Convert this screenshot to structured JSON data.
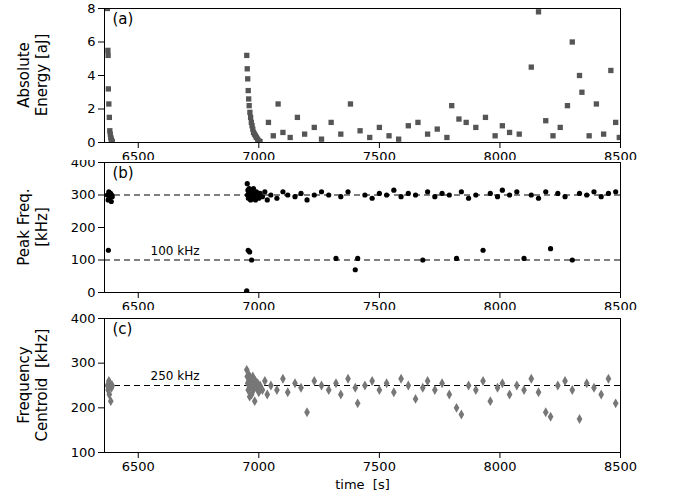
{
  "chart_data": [
    {
      "type": "scatter",
      "panel_label": "(a)",
      "y_label": [
        "Absolute",
        "Energy [aJ]"
      ],
      "color": "#555555",
      "marker": "square",
      "xlim": [
        6360,
        8500
      ],
      "xticks": [
        6500,
        7000,
        7500,
        8000,
        8500
      ],
      "ylim": [
        0,
        8
      ],
      "yticks": [
        0,
        2,
        4,
        6,
        8
      ],
      "x": [
        6372,
        6374,
        6375,
        6376,
        6378,
        6380,
        6382,
        6384,
        6386,
        6388,
        6390,
        6392,
        6950,
        6952,
        6954,
        6956,
        6958,
        6960,
        6963,
        6966,
        6969,
        6972,
        6975,
        6978,
        6982,
        6986,
        6990,
        6995,
        7000,
        7005,
        7040,
        7060,
        7080,
        7100,
        7130,
        7160,
        7190,
        7230,
        7260,
        7300,
        7340,
        7380,
        7420,
        7460,
        7500,
        7540,
        7580,
        7620,
        7660,
        7700,
        7740,
        7780,
        7800,
        7830,
        7860,
        7900,
        7940,
        7980,
        8010,
        8040,
        8080,
        8130,
        8160,
        8190,
        8220,
        8250,
        8280,
        8300,
        8330,
        8340,
        8370,
        8400,
        8430,
        8460,
        8480,
        8495
      ],
      "values": [
        8.0,
        5.5,
        5.2,
        3.2,
        2.3,
        1.5,
        0.7,
        0.5,
        0.3,
        0.2,
        0.1,
        0.05,
        5.2,
        4.4,
        3.8,
        3.1,
        2.6,
        2.2,
        1.8,
        1.5,
        1.2,
        1.0,
        0.8,
        0.6,
        0.5,
        0.4,
        0.3,
        0.2,
        0.1,
        0.05,
        1.2,
        0.4,
        2.3,
        0.6,
        0.3,
        1.5,
        0.5,
        0.9,
        0.2,
        1.2,
        0.5,
        2.3,
        0.7,
        0.3,
        0.9,
        0.4,
        0.2,
        1.0,
        1.2,
        0.5,
        0.8,
        0.3,
        2.2,
        1.4,
        1.2,
        0.9,
        1.5,
        0.4,
        1.0,
        0.6,
        0.5,
        4.5,
        7.8,
        1.3,
        0.4,
        0.9,
        2.2,
        6.0,
        4.0,
        3.0,
        0.4,
        2.3,
        0.5,
        4.3,
        1.2,
        0.3
      ]
    },
    {
      "type": "scatter",
      "panel_label": "(b)",
      "y_label": [
        "Peak Freq.",
        "[kHz]"
      ],
      "color": "#000000",
      "marker": "circle",
      "xlim": [
        6360,
        8500
      ],
      "xticks": [
        6500,
        7000,
        7500,
        8000,
        8500
      ],
      "ylim": [
        0,
        400
      ],
      "yticks": [
        0,
        100,
        200,
        300,
        400
      ],
      "reference_lines": [
        {
          "value": 300,
          "line_style": "dashed"
        },
        {
          "value": 100,
          "label": "100 kHz",
          "line_style": "dashed"
        }
      ],
      "x": [
        6372,
        6375,
        6378,
        6380,
        6382,
        6385,
        6388,
        6390,
        6376,
        6392,
        6948,
        6950,
        6952,
        6953,
        6955,
        6957,
        6958,
        6960,
        6962,
        6964,
        6966,
        6968,
        6970,
        6972,
        6975,
        6978,
        6980,
        6983,
        6986,
        6990,
        6995,
        7000,
        6956,
        6962,
        6970,
        7005,
        7015,
        7025,
        7035,
        7050,
        7075,
        7100,
        7120,
        7150,
        7175,
        7200,
        7230,
        7260,
        7290,
        7320,
        7340,
        7370,
        7400,
        7410,
        7440,
        7470,
        7500,
        7530,
        7560,
        7590,
        7620,
        7650,
        7680,
        7700,
        7730,
        7760,
        7790,
        7820,
        7840,
        7870,
        7900,
        7930,
        7960,
        7990,
        8010,
        8040,
        8070,
        8100,
        8130,
        8160,
        8190,
        8210,
        8240,
        8270,
        8300,
        8330,
        8360,
        8390,
        8420,
        8450,
        8480
      ],
      "values": [
        300,
        285,
        310,
        295,
        290,
        305,
        280,
        300,
        130,
        295,
        0,
        5,
        335,
        300,
        315,
        290,
        305,
        320,
        295,
        310,
        285,
        300,
        310,
        290,
        305,
        320,
        295,
        300,
        285,
        310,
        300,
        290,
        130,
        125,
        100,
        305,
        295,
        310,
        285,
        300,
        290,
        310,
        300,
        295,
        305,
        285,
        300,
        310,
        300,
        105,
        295,
        310,
        70,
        105,
        300,
        290,
        305,
        300,
        315,
        295,
        305,
        300,
        100,
        310,
        295,
        305,
        300,
        105,
        310,
        290,
        300,
        130,
        305,
        295,
        315,
        300,
        310,
        105,
        300,
        290,
        310,
        135,
        305,
        295,
        100,
        305,
        300,
        310,
        295,
        305,
        310
      ]
    },
    {
      "type": "scatter",
      "panel_label": "(c)",
      "y_label": [
        "Frequency",
        "Centroid  [kHz]"
      ],
      "x_label": "time  [s]",
      "color": "#777777",
      "marker": "diamond",
      "xlim": [
        6360,
        8500
      ],
      "xticks": [
        6500,
        7000,
        7500,
        8000,
        8500
      ],
      "ylim": [
        100,
        400
      ],
      "yticks": [
        100,
        200,
        300,
        400
      ],
      "reference_lines": [
        {
          "value": 250,
          "label": "250 kHz",
          "line_style": "dashed"
        }
      ],
      "x": [
        6372,
        6375,
        6378,
        6380,
        6383,
        6386,
        6389,
        6392,
        6950,
        6952,
        6954,
        6956,
        6958,
        6960,
        6962,
        6964,
        6966,
        6968,
        6970,
        6972,
        6975,
        6978,
        6980,
        6983,
        6986,
        6990,
        6995,
        7000,
        7005,
        7015,
        7025,
        7035,
        7050,
        7075,
        7100,
        7120,
        7150,
        7175,
        7200,
        7230,
        7260,
        7290,
        7320,
        7340,
        7370,
        7400,
        7410,
        7440,
        7470,
        7500,
        7530,
        7560,
        7590,
        7620,
        7650,
        7680,
        7700,
        7730,
        7760,
        7790,
        7820,
        7840,
        7870,
        7900,
        7930,
        7960,
        7990,
        8010,
        8040,
        8070,
        8100,
        8130,
        8160,
        8190,
        8210,
        8240,
        8270,
        8300,
        8330,
        8360,
        8390,
        8420,
        8450,
        8480
      ],
      "values": [
        250,
        240,
        260,
        230,
        255,
        215,
        245,
        250,
        285,
        270,
        255,
        240,
        275,
        260,
        225,
        250,
        265,
        245,
        230,
        255,
        270,
        240,
        250,
        215,
        260,
        245,
        255,
        235,
        250,
        240,
        260,
        230,
        250,
        240,
        265,
        235,
        255,
        245,
        190,
        260,
        250,
        240,
        255,
        230,
        265,
        245,
        210,
        250,
        260,
        240,
        255,
        235,
        265,
        250,
        220,
        245,
        260,
        240,
        255,
        230,
        200,
        185,
        250,
        240,
        260,
        215,
        245,
        255,
        230,
        250,
        240,
        265,
        235,
        190,
        180,
        250,
        260,
        240,
        175,
        255,
        245,
        230,
        265,
        210
      ]
    }
  ]
}
